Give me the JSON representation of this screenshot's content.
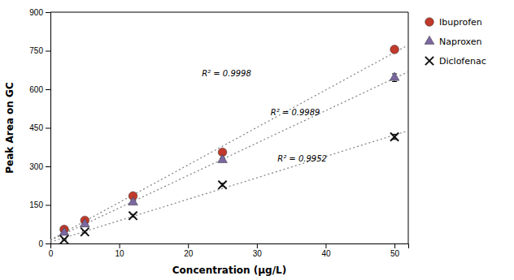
{
  "chart_data": {
    "type": "scatter",
    "xlabel": "Concentration (μg/L)",
    "ylabel": "Peak Area on GC",
    "xlim": [
      0,
      52
    ],
    "ylim": [
      0,
      900
    ],
    "xticks": [
      0,
      10,
      20,
      30,
      40,
      50
    ],
    "yticks": [
      0,
      150,
      300,
      450,
      600,
      750,
      900
    ],
    "grid": false,
    "legend": "right",
    "series": [
      {
        "name": "Ibuprofen",
        "color": "#c0392b",
        "marker": "circle",
        "x": [
          2,
          5,
          12,
          25,
          50
        ],
        "values": [
          55,
          90,
          185,
          355,
          755
        ],
        "errors": [
          5,
          5,
          8,
          10,
          12
        ]
      },
      {
        "name": "Naproxen",
        "color": "#7b68a0",
        "marker": "triangle",
        "x": [
          2,
          5,
          12,
          25,
          50
        ],
        "values": [
          42,
          75,
          160,
          325,
          645
        ],
        "errors": [
          4,
          4,
          6,
          8,
          15
        ]
      },
      {
        "name": "Diclofenac",
        "color": "#111111",
        "marker": "cross",
        "x": [
          2,
          5,
          12,
          25,
          50
        ],
        "values": [
          15,
          45,
          108,
          228,
          415
        ],
        "errors": [
          3,
          4,
          5,
          6,
          10
        ]
      },
      {
        "type": "line",
        "line_style": "dotted",
        "color": "#808080",
        "x": [
          0,
          52
        ],
        "values": [
          13.7249,
          772.3583
        ]
      },
      {
        "type": "line",
        "line_style": "dotted",
        "color": "#808080",
        "x": [
          0,
          52
        ],
        "values": [
          12.2459,
          668.2041
        ]
      },
      {
        "type": "line",
        "line_style": "dotted",
        "color": "#808080",
        "x": [
          0,
          52
        ],
        "values": [
          5.5636,
          438.8132
        ]
      }
    ],
    "annotations": [
      {
        "text": "R² = 0.9998",
        "x": 22,
        "y": 650
      },
      {
        "text": "R² = 0.9989",
        "x": 32,
        "y": 500
      },
      {
        "text": "R² = 0.9952",
        "x": 33,
        "y": 320
      }
    ]
  }
}
